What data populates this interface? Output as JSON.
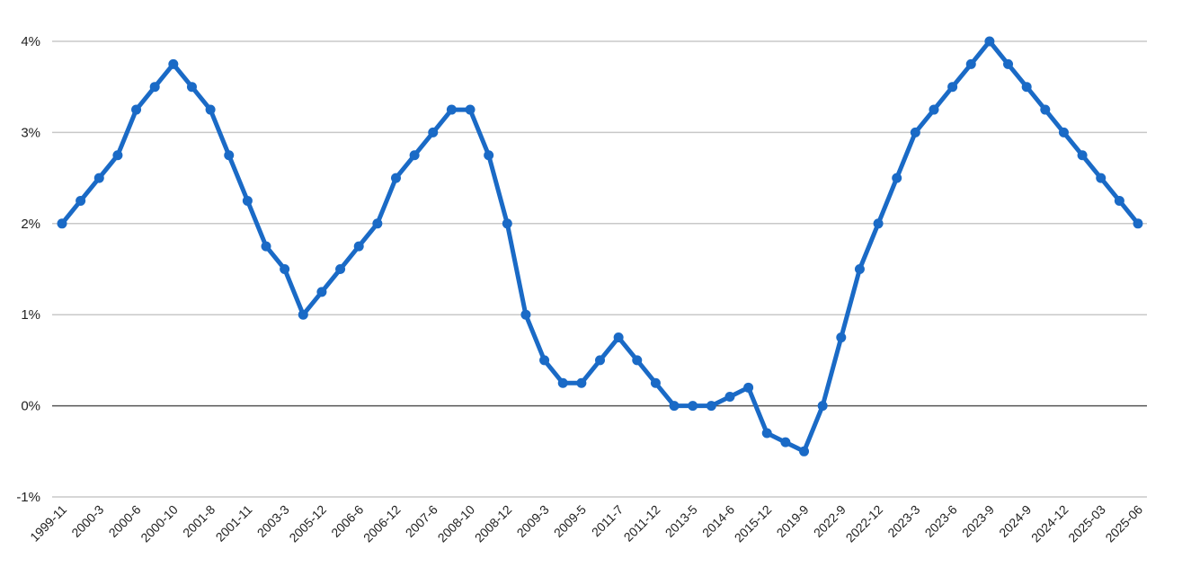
{
  "chart_data": {
    "type": "line",
    "title": "",
    "xlabel": "",
    "ylabel": "",
    "ylim": [
      -1,
      4
    ],
    "yticks": [
      {
        "value": -1,
        "label": "-1%"
      },
      {
        "value": 0,
        "label": "0%"
      },
      {
        "value": 1,
        "label": "1%"
      },
      {
        "value": 2,
        "label": "2%"
      },
      {
        "value": 3,
        "label": "3%"
      },
      {
        "value": 4,
        "label": "4%"
      }
    ],
    "grid": true,
    "x_labels": [
      "1999-11",
      "2000-3",
      "2000-6",
      "2000-10",
      "2001-8",
      "2001-11",
      "2003-3",
      "2005-12",
      "2006-6",
      "2006-12",
      "2007-6",
      "2008-10",
      "2008-12",
      "2009-3",
      "2009-5",
      "2011-7",
      "2011-12",
      "2013-5",
      "2014-6",
      "2015-12",
      "2019-9",
      "2022-9",
      "2022-12",
      "2023-3",
      "2023-6",
      "2023-9",
      "2024-9",
      "2024-12",
      "2025-03",
      "2025-06"
    ],
    "series": [
      {
        "color": "#1a6ac6",
        "values": [
          2.0,
          2.25,
          2.5,
          2.75,
          3.25,
          3.5,
          3.75,
          3.5,
          3.25,
          2.75,
          2.25,
          1.75,
          1.5,
          1.0,
          1.25,
          1.5,
          1.75,
          2.0,
          2.5,
          2.75,
          3.0,
          3.25,
          3.25,
          2.75,
          2.0,
          1.0,
          0.5,
          0.25,
          0.25,
          0.5,
          0.75,
          0.5,
          0.25,
          0.0,
          0.0,
          0.0,
          0.1,
          0.2,
          -0.3,
          -0.4,
          -0.5,
          0.0,
          0.75,
          1.5,
          2.0,
          2.5,
          3.0,
          3.25,
          3.5,
          3.75,
          4.0,
          3.75,
          3.5,
          3.25,
          3.0,
          2.75,
          2.5,
          2.25,
          2.0
        ]
      }
    ]
  }
}
